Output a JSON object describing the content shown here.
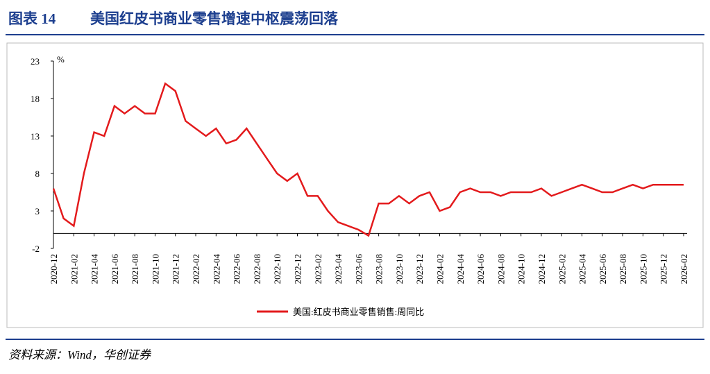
{
  "header": {
    "figure": "图表 14",
    "title": "美国红皮书商业零售增速中枢震荡回落"
  },
  "chart_data": {
    "type": "line",
    "unit": "%",
    "categories": [
      "2020-12",
      null,
      "2021-02",
      null,
      "2021-04",
      null,
      "2021-06",
      null,
      "2021-08",
      null,
      "2021-10",
      null,
      "2021-12",
      null,
      "2022-02",
      null,
      "2022-04",
      null,
      "2022-06",
      null,
      "2022-08",
      null,
      "2022-10",
      null,
      "2022-12",
      null,
      "2023-02",
      null,
      "2023-04",
      null,
      "2023-06",
      null,
      "2023-08",
      null,
      "2023-10",
      null,
      "2023-12",
      null,
      "2024-02",
      null,
      "2024-04",
      null,
      "2024-06",
      null,
      "2024-08",
      null,
      "2024-10",
      null,
      "2024-12",
      null,
      "2025-02",
      null,
      "2025-04",
      null,
      "2025-06",
      null,
      "2025-08",
      null,
      "2025-10",
      null,
      "2025-12",
      null,
      "2026-02"
    ],
    "series": [
      {
        "name": "美国:红皮书商业零售销售:周同比",
        "color": "#e31a1c",
        "values": [
          6,
          2,
          1,
          8,
          13.5,
          13,
          17,
          16,
          17,
          16,
          16,
          20,
          19,
          15,
          14,
          13,
          14,
          12,
          12.5,
          14,
          12,
          10,
          8,
          7,
          8,
          5,
          5,
          3,
          1.5,
          1,
          0.5,
          -0.3,
          4,
          4,
          5,
          4,
          5,
          5.5,
          3,
          3.5,
          5.5,
          6,
          5.5,
          5.5,
          5,
          5.5,
          5.5,
          5.5,
          6,
          5,
          5.5,
          6,
          6.5,
          6,
          5.5,
          5.5,
          6,
          6.5,
          6,
          6.5,
          6.5,
          6.5,
          6.5
        ]
      }
    ],
    "ylim": [
      -2,
      23
    ],
    "yticks": [
      -2,
      3,
      8,
      13,
      18,
      23
    ]
  },
  "source": "资料来源：Wind，华创证券"
}
